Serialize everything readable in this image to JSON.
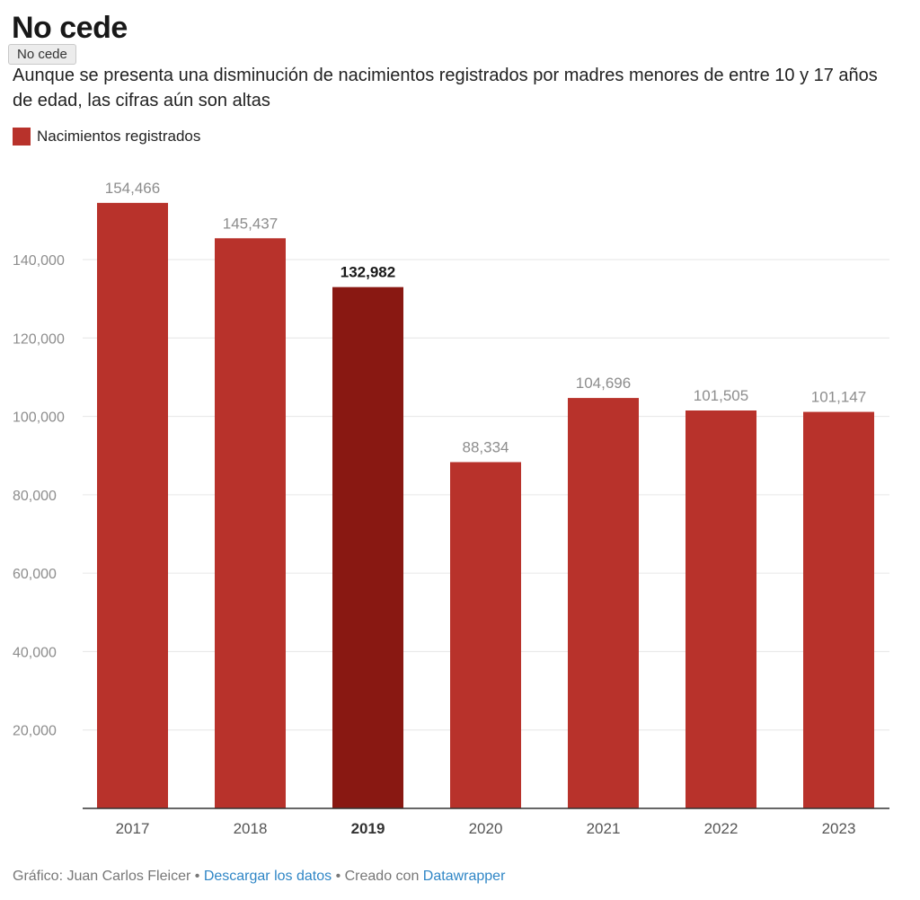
{
  "header": {
    "title": "No cede",
    "tooltip": "No cede",
    "subtitle": "Aunque se presenta una disminución de nacimientos registrados por madres menores de entre 10 y 17 años de edad, las cifras aún son altas"
  },
  "legend": {
    "label": "Nacimientos registrados"
  },
  "colors": {
    "bar": "#b8322b",
    "highlight": "#891812",
    "grid": "#e6e6e6",
    "axis_text": "#8d8d8d",
    "label_text": "#8d8d8d"
  },
  "chart_data": {
    "type": "bar",
    "categories": [
      "2017",
      "2018",
      "2019",
      "2020",
      "2021",
      "2022",
      "2023"
    ],
    "series": [
      {
        "name": "Nacimientos registrados",
        "values": [
          154466,
          145437,
          132982,
          88334,
          104696,
          101505,
          101147
        ]
      }
    ],
    "value_labels": [
      "154,466",
      "145,437",
      "132,982",
      "88,334",
      "104,696",
      "101,505",
      "101,147"
    ],
    "highlight_category": "2019",
    "yticks": [
      20000,
      40000,
      60000,
      80000,
      100000,
      120000,
      140000
    ],
    "ytick_labels": [
      "20,000",
      "40,000",
      "60,000",
      "80,000",
      "100,000",
      "120,000",
      "140,000"
    ],
    "ylim": [
      0,
      160000
    ],
    "grid": true,
    "legend_position": "top-left"
  },
  "footer": {
    "credit": "Gráfico: Juan Carlos Fleicer",
    "separator": "•",
    "download_link": "Descargar los datos",
    "created_with": "Creado con",
    "tool_link": "Datawrapper"
  }
}
